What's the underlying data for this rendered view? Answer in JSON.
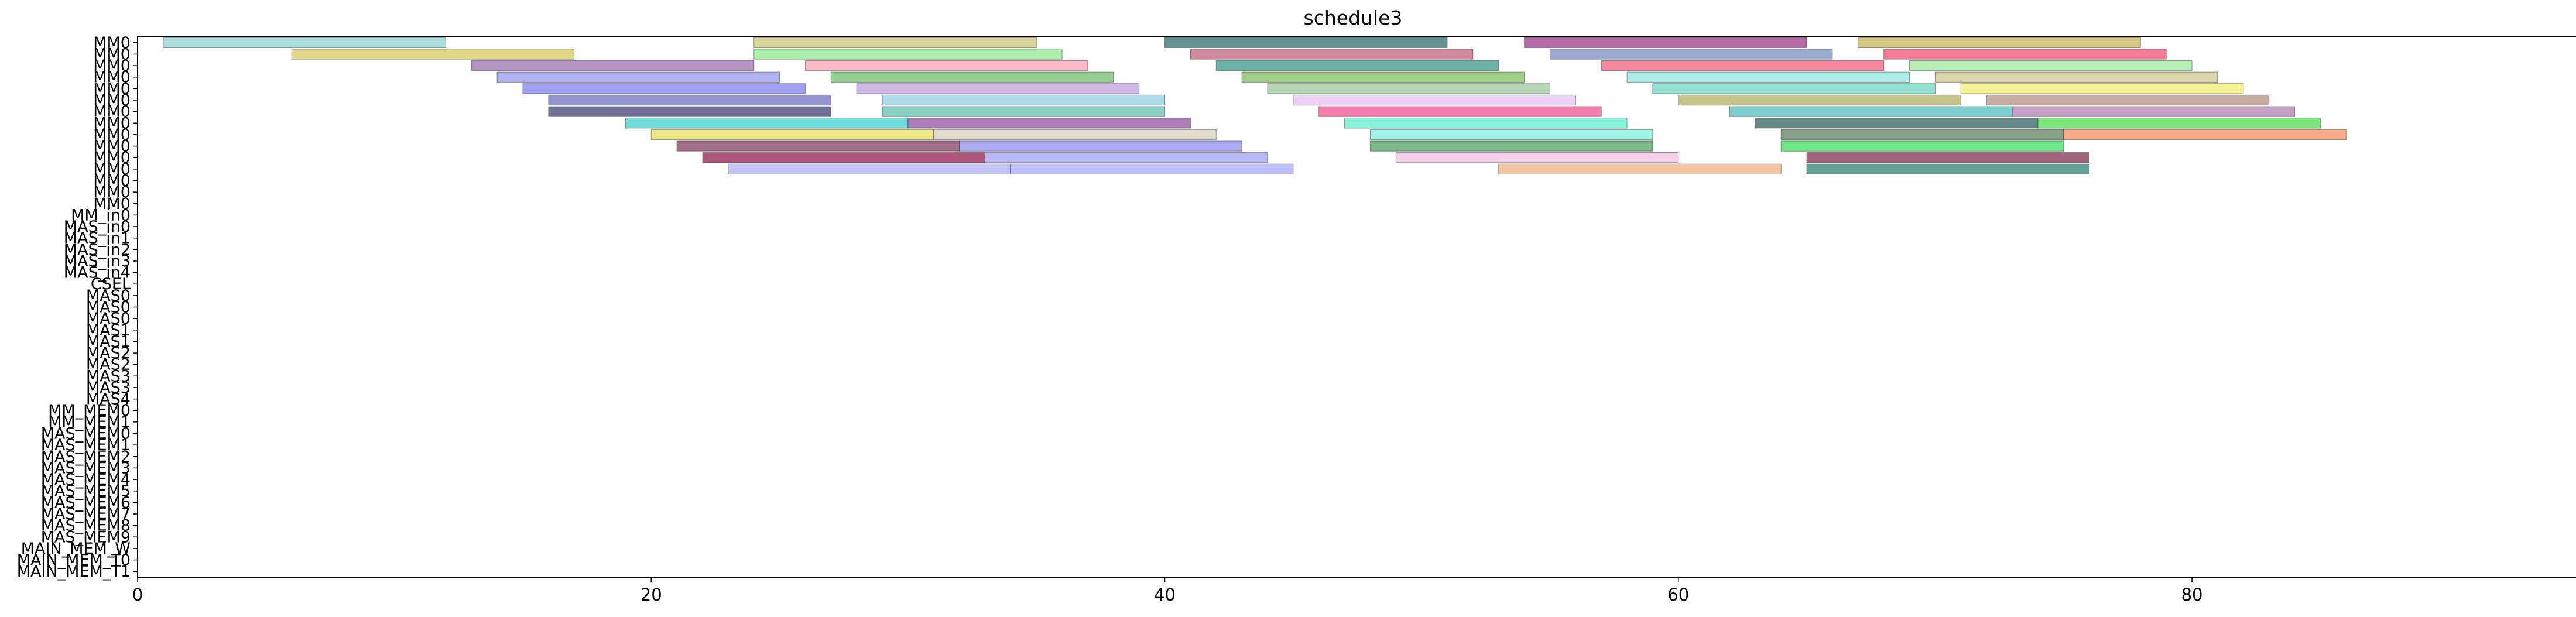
{
  "chart_data": {
    "type": "gantt",
    "title": "schedule3",
    "xlabel": "",
    "ylabel": "",
    "xlim": [
      0,
      95
    ],
    "xticks": [
      0,
      20,
      40,
      60,
      80
    ],
    "grid": false,
    "rows": [
      "MM0",
      "MM0",
      "MM0",
      "MM0",
      "MM0",
      "MM0",
      "MM0",
      "MM0",
      "MM0",
      "MM0",
      "MM0",
      "MM0",
      "MM0",
      "MM0",
      "MM0",
      "MM_in0",
      "MAS_in0",
      "MAS_in1",
      "MAS_in2",
      "MAS_in3",
      "MAS_in4",
      "CSEL",
      "MAS0",
      "MAS0",
      "MAS0",
      "MAS1",
      "MAS1",
      "MAS2",
      "MAS2",
      "MAS3",
      "MAS3",
      "MAS4",
      "MM_MEM0",
      "MM_MEM1",
      "MAS_MEM0",
      "MAS_MEM1",
      "MAS_MEM2",
      "MAS_MEM3",
      "MAS_MEM4",
      "MAS_MEM5",
      "MAS_MEM6",
      "MAS_MEM7",
      "MAS_MEM8",
      "MAS_MEM9",
      "MAIN_MEM_W",
      "MAIN_MEM_T0",
      "MAIN_MEM_T1"
    ],
    "tasks": [
      {
        "row": 0,
        "start": 1,
        "end": 12,
        "color": "#8dd3d3"
      },
      {
        "row": 0,
        "start": 24,
        "end": 35,
        "color": "#c8c87a"
      },
      {
        "row": 0,
        "start": 40,
        "end": 51,
        "color": "#2f6f6f"
      },
      {
        "row": 0,
        "start": 54,
        "end": 65,
        "color": "#9b3a8a"
      },
      {
        "row": 0,
        "start": 67,
        "end": 78,
        "color": "#c8b45a"
      },
      {
        "row": 1,
        "start": 6,
        "end": 17,
        "color": "#d4c860"
      },
      {
        "row": 1,
        "start": 24,
        "end": 36,
        "color": "#8ee88e"
      },
      {
        "row": 1,
        "start": 41,
        "end": 52,
        "color": "#c0607a"
      },
      {
        "row": 1,
        "start": 55,
        "end": 66,
        "color": "#7a8fc0"
      },
      {
        "row": 1,
        "start": 68,
        "end": 79,
        "color": "#f05070"
      },
      {
        "row": 2,
        "start": 13,
        "end": 24,
        "color": "#9a70b0"
      },
      {
        "row": 2,
        "start": 26,
        "end": 37,
        "color": "#f7a0b0"
      },
      {
        "row": 2,
        "start": 42,
        "end": 53,
        "color": "#3a9a8a"
      },
      {
        "row": 2,
        "start": 57,
        "end": 68,
        "color": "#f06080"
      },
      {
        "row": 2,
        "start": 69,
        "end": 80,
        "color": "#a0e8a0"
      },
      {
        "row": 3,
        "start": 14,
        "end": 25,
        "color": "#9a9af0"
      },
      {
        "row": 3,
        "start": 27,
        "end": 38,
        "color": "#70c070"
      },
      {
        "row": 3,
        "start": 43,
        "end": 54,
        "color": "#80c060"
      },
      {
        "row": 3,
        "start": 58,
        "end": 69,
        "color": "#90e8e0"
      },
      {
        "row": 3,
        "start": 70,
        "end": 81,
        "color": "#d0c890"
      },
      {
        "row": 4,
        "start": 15,
        "end": 26,
        "color": "#8080f0"
      },
      {
        "row": 4,
        "start": 28,
        "end": 39,
        "color": "#c0a0e0"
      },
      {
        "row": 4,
        "start": 44,
        "end": 55,
        "color": "#a0c8a0"
      },
      {
        "row": 4,
        "start": 59,
        "end": 70,
        "color": "#70d8c8"
      },
      {
        "row": 4,
        "start": 71,
        "end": 82,
        "color": "#f0f070"
      },
      {
        "row": 5,
        "start": 16,
        "end": 27,
        "color": "#7070c0"
      },
      {
        "row": 5,
        "start": 29,
        "end": 40,
        "color": "#90d0e0"
      },
      {
        "row": 5,
        "start": 45,
        "end": 56,
        "color": "#e8c0f0"
      },
      {
        "row": 5,
        "start": 60,
        "end": 71,
        "color": "#b0b060"
      },
      {
        "row": 5,
        "start": 72,
        "end": 83,
        "color": "#b09080"
      },
      {
        "row": 6,
        "start": 16,
        "end": 27,
        "color": "#404070"
      },
      {
        "row": 6,
        "start": 29,
        "end": 40,
        "color": "#60c0b0"
      },
      {
        "row": 6,
        "start": 46,
        "end": 57,
        "color": "#f05090"
      },
      {
        "row": 6,
        "start": 62,
        "end": 73,
        "color": "#50c0c0"
      },
      {
        "row": 6,
        "start": 73,
        "end": 84,
        "color": "#b080b0"
      },
      {
        "row": 7,
        "start": 19,
        "end": 30,
        "color": "#40d0d0"
      },
      {
        "row": 7,
        "start": 30,
        "end": 41,
        "color": "#9050a0"
      },
      {
        "row": 7,
        "start": 47,
        "end": 58,
        "color": "#60f0d0"
      },
      {
        "row": 7,
        "start": 63,
        "end": 74,
        "color": "#306060"
      },
      {
        "row": 7,
        "start": 74,
        "end": 85,
        "color": "#50e050"
      },
      {
        "row": 8,
        "start": 20,
        "end": 31,
        "color": "#e8e060"
      },
      {
        "row": 8,
        "start": 31,
        "end": 42,
        "color": "#d8d0c0"
      },
      {
        "row": 8,
        "start": 48,
        "end": 59,
        "color": "#80f0e0"
      },
      {
        "row": 8,
        "start": 64,
        "end": 75,
        "color": "#608060"
      },
      {
        "row": 8,
        "start": 75,
        "end": 86,
        "color": "#f89060"
      },
      {
        "row": 9,
        "start": 21,
        "end": 32,
        "color": "#804060"
      },
      {
        "row": 9,
        "start": 32,
        "end": 43,
        "color": "#9090f0"
      },
      {
        "row": 9,
        "start": 48,
        "end": 59,
        "color": "#50a060"
      },
      {
        "row": 9,
        "start": 64,
        "end": 75,
        "color": "#40e060"
      },
      {
        "row": 10,
        "start": 22,
        "end": 33,
        "color": "#902050"
      },
      {
        "row": 10,
        "start": 33,
        "end": 44,
        "color": "#a0a0f0"
      },
      {
        "row": 10,
        "start": 49,
        "end": 60,
        "color": "#f0c0e0"
      },
      {
        "row": 10,
        "start": 65,
        "end": 76,
        "color": "#803050"
      },
      {
        "row": 11,
        "start": 23,
        "end": 34,
        "color": "#b0b0f0"
      },
      {
        "row": 11,
        "start": 34,
        "end": 45,
        "color": "#a8a8f8"
      },
      {
        "row": 11,
        "start": 53,
        "end": 64,
        "color": "#f0b080"
      },
      {
        "row": 11,
        "start": 65,
        "end": 76,
        "color": "#308070"
      }
    ]
  }
}
